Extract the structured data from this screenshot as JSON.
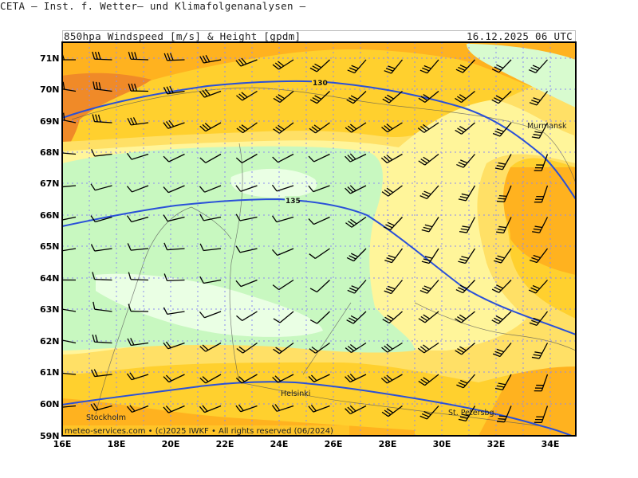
{
  "header": {
    "title": "CETA — Inst. f. Wetter— und Klimafolgenanalysen —",
    "subtitle": "850hpa_Windspeed_[m/s]_&_Height_[gpdm]",
    "datetime": "16.12.2025 06 UTC"
  },
  "map": {
    "lat_ticks": [
      "71N",
      "70N",
      "69N",
      "68N",
      "67N",
      "66N",
      "65N",
      "64N",
      "63N",
      "62N",
      "61N",
      "60N",
      "59N"
    ],
    "lon_ticks": [
      "16E",
      "18E",
      "20E",
      "22E",
      "24E",
      "26E",
      "28E",
      "30E",
      "32E",
      "34E"
    ],
    "cities": [
      "Murmansk",
      "Helsinki",
      "Stockholm",
      "St. Petersbg."
    ],
    "contour_labels": [
      "130",
      "135"
    ],
    "copyright": "meteo-services.com • (c)2025 IWKF • All rights reserved (06/2024)",
    "colors": {
      "calm_light": "#eaffe4",
      "light_green": "#c8f8c0",
      "pale_yellow": "#fff59a",
      "yellow": "#ffe066",
      "gold": "#ffcc33",
      "orange": "#ffb21f",
      "dark_orange": "#f08a28",
      "height_contour": "#2a50d8",
      "grid": "#8c8cf0"
    }
  }
}
